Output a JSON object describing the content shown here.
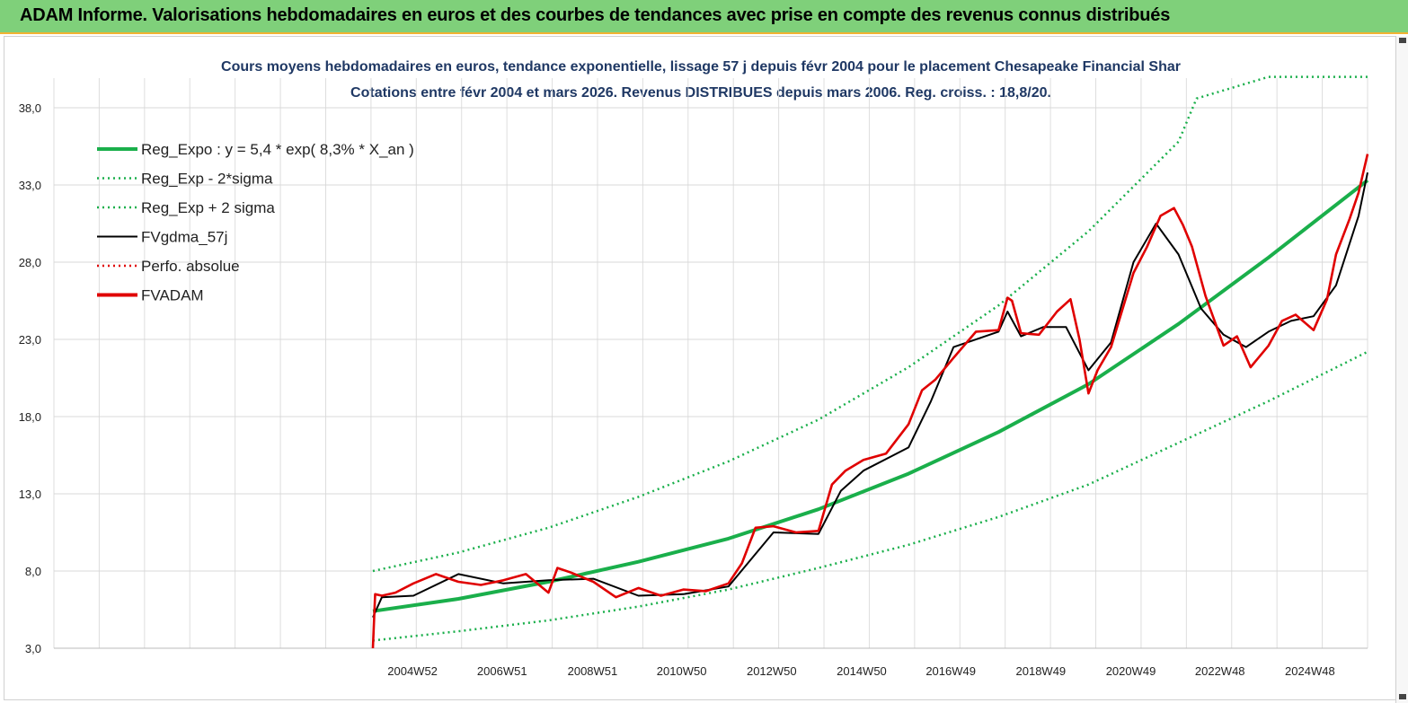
{
  "header": {
    "title": "ADAM Informe. Valorisations hebdomadaires en euros et des courbes de tendances avec prise en compte des revenus connus distribués"
  },
  "chart_data": {
    "type": "line",
    "title": "Cours moyens hebdomadaires en euros, tendance exponentielle, lissage 57 j depuis févr 2004 pour le placement Chesapeake Financial Shar",
    "subtitle": "Cotations entre févr 2004 et mars 2026. Revenus DISTRIBUES depuis mars 2006. Reg. croiss. : 18,8/20.",
    "xlabel": "",
    "ylabel": "",
    "ylim": [
      3,
      40
    ],
    "y_ticks": [
      "3,0",
      "8,0",
      "13,0",
      "18,0",
      "23,0",
      "28,0",
      "33,0",
      "38,0"
    ],
    "y_tick_values": [
      3,
      8,
      13,
      18,
      23,
      28,
      33,
      38
    ],
    "x_ticks": [
      "2004W52",
      "2006W51",
      "2008W51",
      "2010W50",
      "2012W50",
      "2014W50",
      "2016W49",
      "2018W49",
      "2020W49",
      "2022W48",
      "2024W48"
    ],
    "x_tick_years": [
      2004.98,
      2006.97,
      2008.98,
      2010.96,
      2012.96,
      2014.96,
      2016.94,
      2018.94,
      2020.94,
      2022.92,
      2024.92
    ],
    "xlim": [
      2004.1,
      2026.2
    ],
    "grid": true,
    "legend_position": "top-left",
    "legend": [
      {
        "name": "Reg_Expo : y = 5,4 * exp( 8,3% *  X_an )",
        "color": "#1aaf4b",
        "style": "solid-thick"
      },
      {
        "name": "Reg_Exp - 2*sigma",
        "color": "#1aaf4b",
        "style": "dotted"
      },
      {
        "name": "Reg_Exp + 2 sigma",
        "color": "#1aaf4b",
        "style": "dotted"
      },
      {
        "name": "FVgdma_57j",
        "color": "#000000",
        "style": "solid"
      },
      {
        "name": "Perfo. absolue",
        "color": "#e00000",
        "style": "dotted"
      },
      {
        "name": "FVADAM",
        "color": "#e00000",
        "style": "solid-thick"
      }
    ],
    "series": [
      {
        "name": "Reg_Expo : y = 5,4 * exp( 8,3% *  X_an )",
        "x": [
          2004.1,
          2006,
          2008,
          2010,
          2012,
          2014,
          2016,
          2018,
          2020,
          2022,
          2024,
          2026.2
        ],
        "values": [
          5.4,
          6.2,
          7.3,
          8.6,
          10.1,
          12.0,
          14.3,
          17.0,
          20.1,
          24.0,
          28.3,
          33.3
        ]
      },
      {
        "name": "Reg_Exp - 2*sigma",
        "x": [
          2004.1,
          2006,
          2008,
          2010,
          2012,
          2014,
          2016,
          2018,
          2020,
          2022,
          2024,
          2026.2
        ],
        "values": [
          3.5,
          4.1,
          4.8,
          5.7,
          6.8,
          8.2,
          9.7,
          11.5,
          13.6,
          16.3,
          19.0,
          22.2
        ]
      },
      {
        "name": "Reg_Exp + 2 sigma",
        "x": [
          2004.1,
          2006,
          2008,
          2010,
          2012,
          2014,
          2016,
          2018,
          2020,
          2022,
          2022.4,
          2024,
          2026.2
        ],
        "values": [
          8.0,
          9.2,
          10.8,
          12.8,
          15.1,
          17.8,
          21.2,
          25.2,
          30.0,
          35.8,
          38.6,
          40.0,
          40.0
        ]
      },
      {
        "name": "FVgdma_57j",
        "x": [
          2004.1,
          2004.3,
          2005,
          2006,
          2007,
          2008,
          2009,
          2010,
          2011,
          2012,
          2013,
          2014,
          2014.5,
          2015,
          2016,
          2016.5,
          2017,
          2018,
          2018.2,
          2018.5,
          2019,
          2019.5,
          2020,
          2020.5,
          2021,
          2021.5,
          2022,
          2022.5,
          2023,
          2023.5,
          2024,
          2024.5,
          2025,
          2025.5,
          2026,
          2026.2
        ],
        "values": [
          5.0,
          6.3,
          6.4,
          7.8,
          7.2,
          7.4,
          7.5,
          6.4,
          6.5,
          7.0,
          10.5,
          10.4,
          13.2,
          14.5,
          16.0,
          19.0,
          22.5,
          23.5,
          24.8,
          23.2,
          23.8,
          23.8,
          21.0,
          22.8,
          28.0,
          30.5,
          28.5,
          25.0,
          23.3,
          22.5,
          23.5,
          24.2,
          24.5,
          26.5,
          31.0,
          33.8
        ]
      },
      {
        "name": "FVADAM",
        "x": [
          2004.1,
          2004.15,
          2004.3,
          2004.6,
          2005,
          2005.5,
          2006,
          2006.5,
          2007,
          2007.5,
          2008,
          2008.2,
          2008.5,
          2009,
          2009.5,
          2010,
          2010.5,
          2011,
          2011.5,
          2012,
          2012.3,
          2012.6,
          2013,
          2013.5,
          2014,
          2014.3,
          2014.6,
          2015,
          2015.5,
          2016,
          2016.3,
          2016.6,
          2017,
          2017.5,
          2018,
          2018.2,
          2018.3,
          2018.5,
          2018.9,
          2019.3,
          2019.6,
          2019.8,
          2020,
          2020.2,
          2020.5,
          2021,
          2021.3,
          2021.6,
          2021.9,
          2022.1,
          2022.3,
          2022.6,
          2023,
          2023.3,
          2023.6,
          2024,
          2024.3,
          2024.6,
          2025,
          2025.3,
          2025.5,
          2025.8,
          2026,
          2026.2
        ],
        "values": [
          3.0,
          6.5,
          6.4,
          6.6,
          7.2,
          7.8,
          7.3,
          7.1,
          7.4,
          7.8,
          6.6,
          8.2,
          7.9,
          7.3,
          6.3,
          6.9,
          6.4,
          6.8,
          6.7,
          7.2,
          8.5,
          10.8,
          10.9,
          10.5,
          10.6,
          13.6,
          14.5,
          15.2,
          15.6,
          17.5,
          19.7,
          20.4,
          21.8,
          23.5,
          23.6,
          25.7,
          25.5,
          23.4,
          23.3,
          24.8,
          25.6,
          23.0,
          19.5,
          21.0,
          22.5,
          27.3,
          29.0,
          31.0,
          31.5,
          30.4,
          29.0,
          25.8,
          22.6,
          23.2,
          21.2,
          22.6,
          24.2,
          24.6,
          23.6,
          25.6,
          28.5,
          30.8,
          32.5,
          35.0
        ]
      }
    ]
  }
}
